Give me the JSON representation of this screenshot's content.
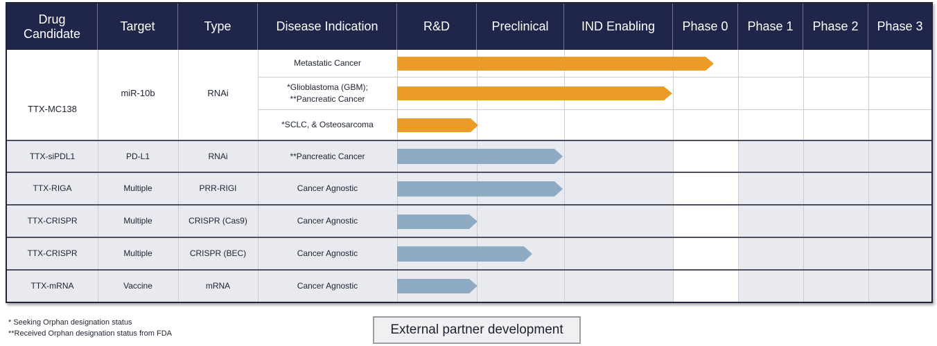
{
  "headers": {
    "drug_candidate": "Drug\nCandidate",
    "target": "Target",
    "type": "Type",
    "disease_indication": "Disease Indication",
    "rnd": "R&D",
    "preclinical": "Preclinical",
    "ind_enabling": "IND Enabling",
    "phase0": "Phase 0",
    "phase1": "Phase 1",
    "phase2": "Phase 2",
    "phase3": "Phase 3"
  },
  "mc138": {
    "drug": "TTX-MC138",
    "target": "miR-10b",
    "type": "RNAi",
    "indications": [
      {
        "label": "Metastatic Cancer",
        "progress_stage": "Phase 0 (near complete)",
        "color": "#eb9b27"
      },
      {
        "label_line1": "*Glioblastoma (GBM);",
        "label_line2": "**Pancreatic Cancer",
        "progress_stage": "IND Enabling (complete)",
        "color": "#eb9b27"
      },
      {
        "label": "*SCLC, & Osteosarcoma",
        "progress_stage": "R&D",
        "color": "#eb9b27"
      }
    ]
  },
  "rows": [
    {
      "drug": "TTX-siPDL1",
      "target": "PD-L1",
      "type": "RNAi",
      "indication": "**Pancreatic Cancer",
      "progress_stage": "Preclinical (complete)",
      "color": "#8fabc4"
    },
    {
      "drug": "TTX-RIGA",
      "target": "Multiple",
      "type": "PRR-RIGI",
      "indication": "Cancer Agnostic",
      "progress_stage": "Preclinical (complete)",
      "color": "#8fabc4"
    },
    {
      "drug": "TTX-CRISPR",
      "target": "Multiple",
      "type": "CRISPR (Cas9)",
      "indication": "Cancer Agnostic",
      "progress_stage": "R&D",
      "color": "#8fabc4"
    },
    {
      "drug": "TTX-CRISPR",
      "target": "Multiple",
      "type": "CRISPR (BEC)",
      "indication": "Cancer Agnostic",
      "progress_stage": "Preclinical (partial)",
      "color": "#8fabc4"
    },
    {
      "drug": "TTX-mRNA",
      "target": "Vaccine",
      "type": "mRNA",
      "indication": "Cancer Agnostic",
      "progress_stage": "R&D",
      "color": "#8fabc4"
    }
  ],
  "footnotes": {
    "single": "* Seeking Orphan designation status",
    "double": "**Received Orphan designation status from FDA"
  },
  "legend": {
    "label": "External partner development"
  },
  "colors": {
    "header_bg": "#20254a",
    "internal_bar": "#eb9b27",
    "partner_bar": "#8fabc4",
    "partner_band": "#e8eaef"
  }
}
